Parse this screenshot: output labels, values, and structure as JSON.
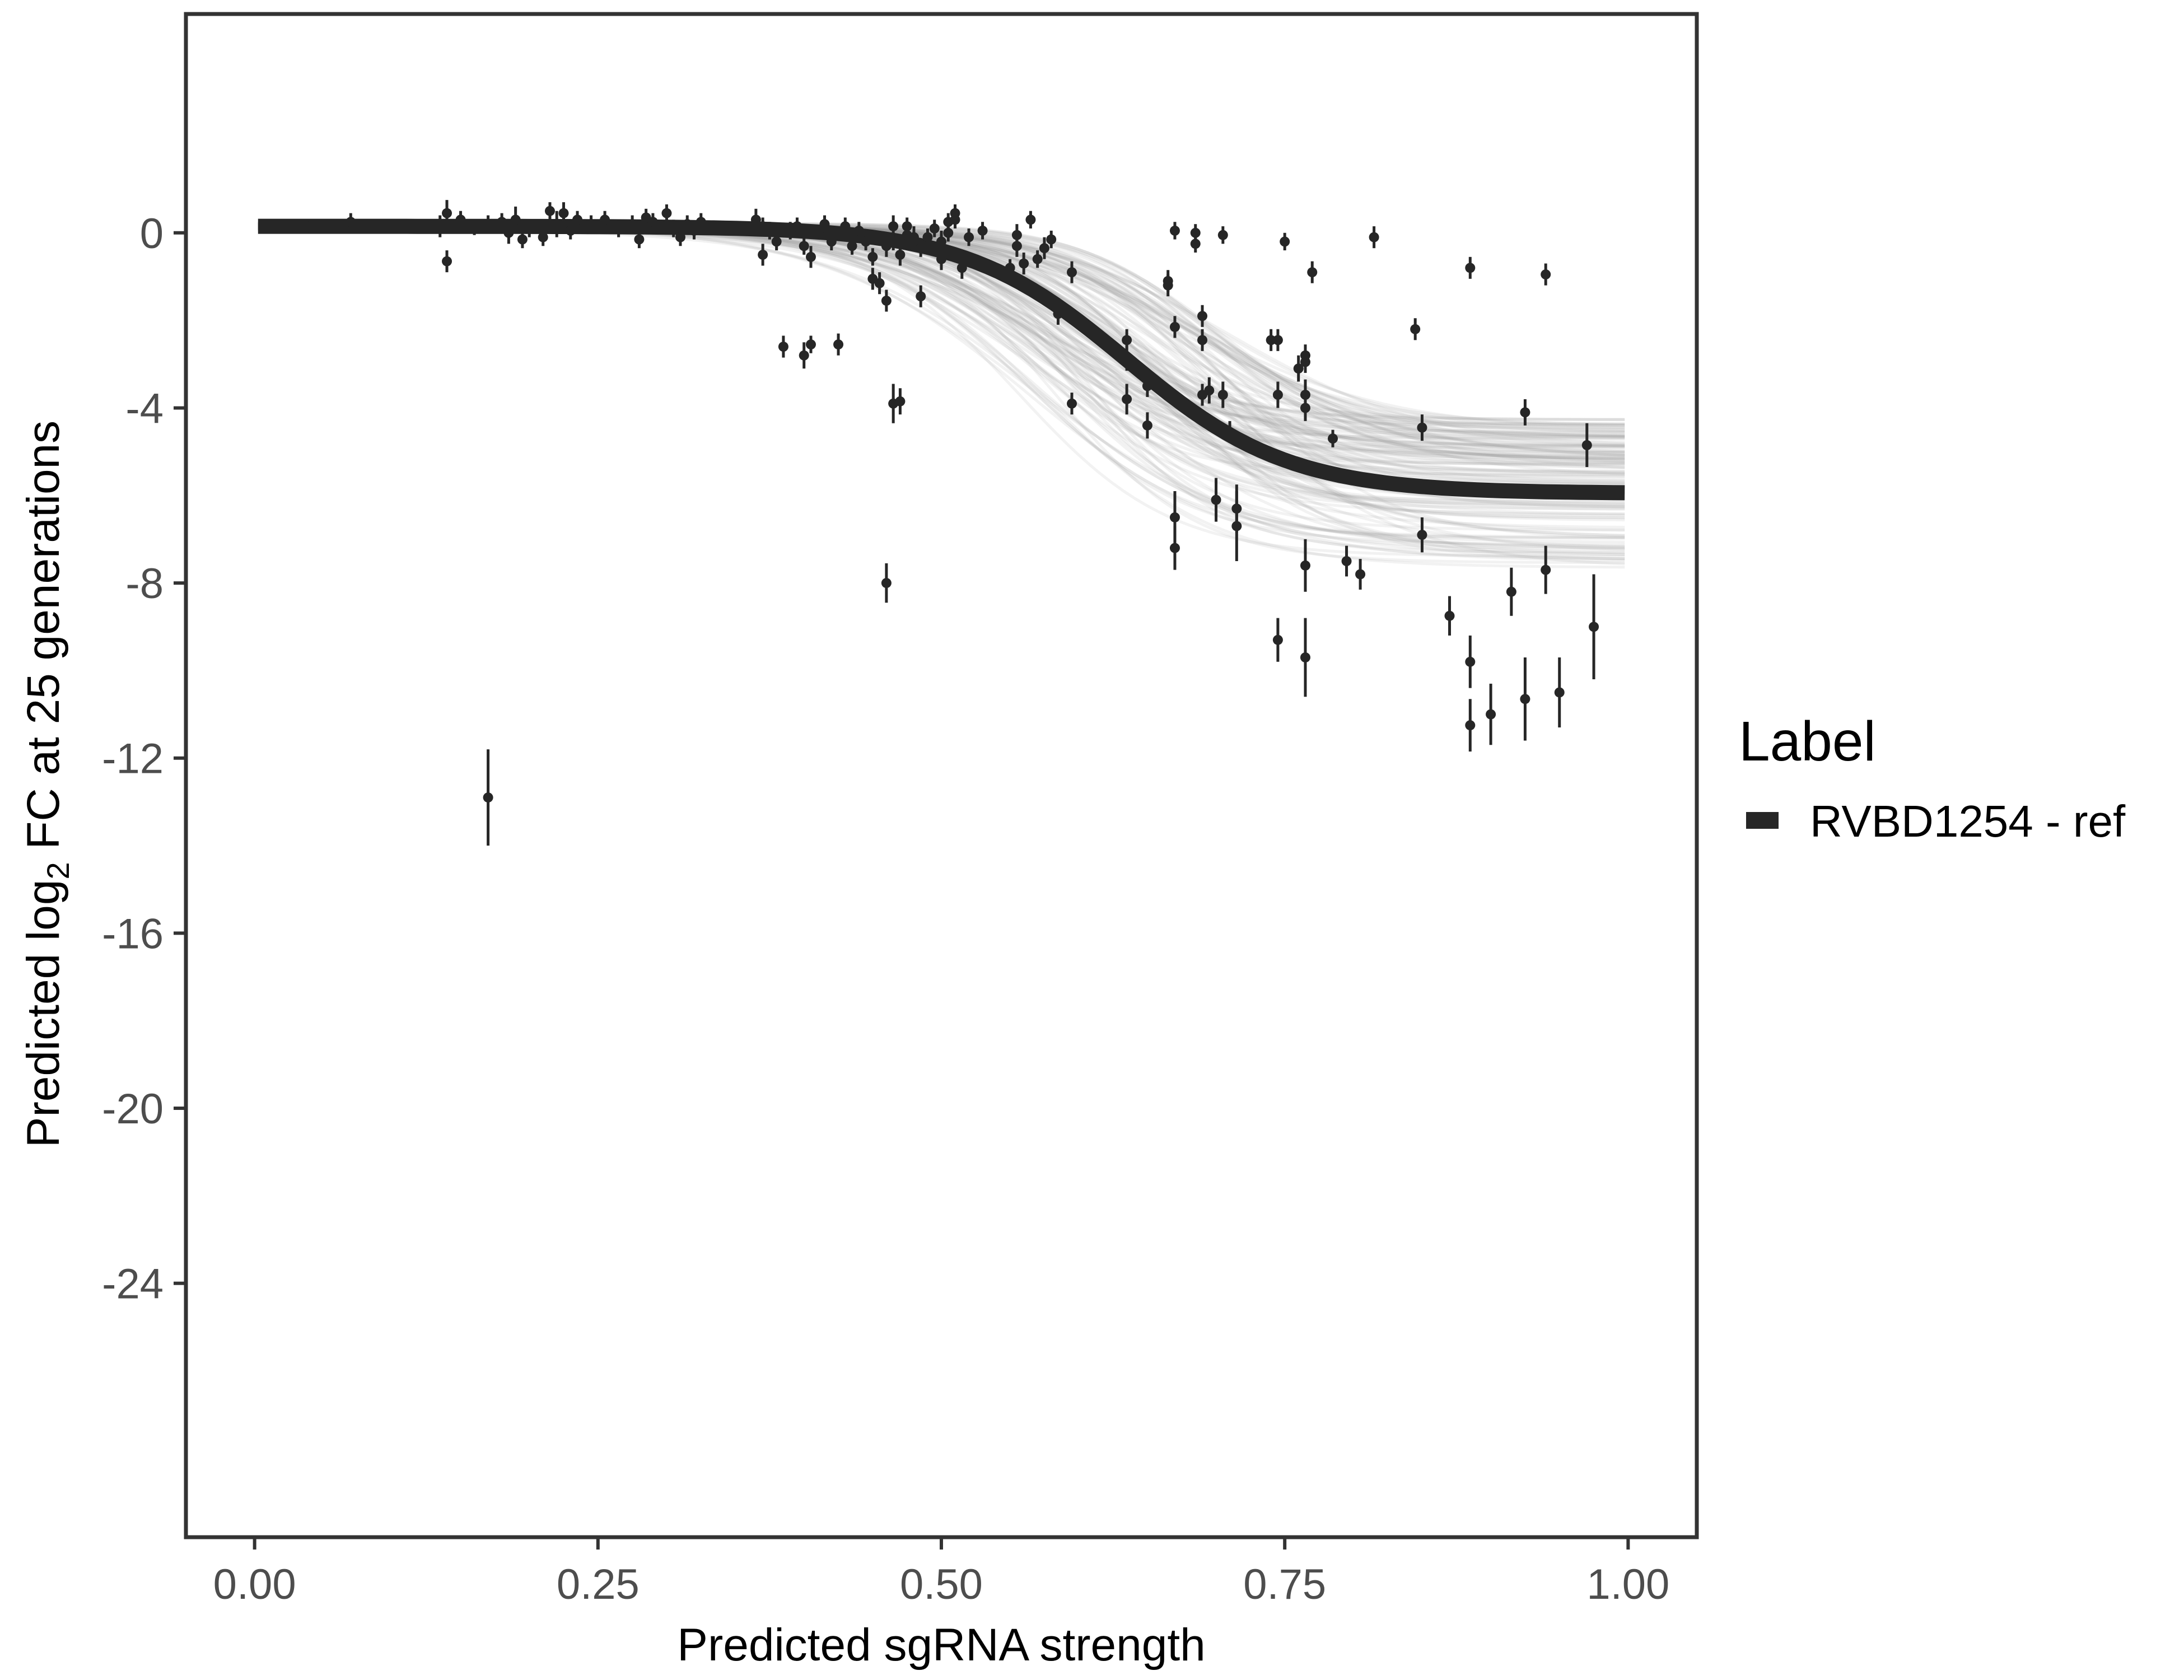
{
  "chart_data": {
    "type": "scatter",
    "xlabel": "Predicted sgRNA strength",
    "ylabel_parts": [
      "Predicted  log",
      "2",
      " FC at 25 generations"
    ],
    "xlim": [
      -0.1,
      2.1
    ],
    "ylim": [
      -29.8,
      5.0
    ],
    "x_ticks": [
      0,
      0.5,
      1,
      1.5,
      2
    ],
    "x_tick_labels": [
      "0.00",
      "0.25",
      "0.50",
      "0.75",
      "1.00"
    ],
    "y_ticks": [
      0,
      -4,
      -8,
      -12,
      -16,
      -20,
      -24
    ],
    "y_tick_labels": [
      "0",
      "-4",
      "-8",
      "-12",
      "-16",
      "-20",
      "-24"
    ],
    "grid": false,
    "legend": {
      "title": "Label",
      "position": "right",
      "entries": [
        {
          "label": "RVBD1254 - ref",
          "color": "#262626"
        }
      ]
    },
    "fit": {
      "name": "RVBD1254 - ref",
      "form": "logistic",
      "upper": 0.15,
      "lower": -5.95,
      "midpoint": 1.27,
      "slope": 8.5,
      "color": "#262626"
    },
    "colors": {
      "fit_line": "#262626",
      "band": "#999999",
      "points": "#262626",
      "axis_frame": "#333333",
      "tick_label": "#4d4d4d"
    },
    "points": [
      {
        "x": 0.08,
        "y": 0.15,
        "e": 0.15
      },
      {
        "x": 0.14,
        "y": 0.25,
        "e": 0.2
      },
      {
        "x": 0.27,
        "y": 0.15,
        "e": 0.25
      },
      {
        "x": 0.28,
        "y": 0.45,
        "e": 0.3
      },
      {
        "x": 0.28,
        "y": -0.65,
        "e": 0.25
      },
      {
        "x": 0.3,
        "y": 0.3,
        "e": 0.2
      },
      {
        "x": 0.32,
        "y": 0.1,
        "e": 0.15
      },
      {
        "x": 0.34,
        "y": 0.2,
        "e": 0.2
      },
      {
        "x": 0.34,
        "y": -12.9,
        "e": 1.1
      },
      {
        "x": 0.36,
        "y": 0.25,
        "e": 0.2
      },
      {
        "x": 0.37,
        "y": 0.0,
        "e": 0.25
      },
      {
        "x": 0.38,
        "y": 0.3,
        "e": 0.3
      },
      {
        "x": 0.39,
        "y": -0.15,
        "e": 0.2
      },
      {
        "x": 0.4,
        "y": 0.1,
        "e": 0.2
      },
      {
        "x": 0.42,
        "y": -0.1,
        "e": 0.2
      },
      {
        "x": 0.43,
        "y": 0.5,
        "e": 0.2
      },
      {
        "x": 0.44,
        "y": 0.2,
        "e": 0.3
      },
      {
        "x": 0.45,
        "y": 0.45,
        "e": 0.25
      },
      {
        "x": 0.46,
        "y": 0.05,
        "e": 0.2
      },
      {
        "x": 0.47,
        "y": 0.3,
        "e": 0.2
      },
      {
        "x": 0.49,
        "y": 0.2,
        "e": 0.2
      },
      {
        "x": 0.51,
        "y": 0.3,
        "e": 0.2
      },
      {
        "x": 0.53,
        "y": 0.1,
        "e": 0.2
      },
      {
        "x": 0.55,
        "y": 0.2,
        "e": 0.2
      },
      {
        "x": 0.56,
        "y": -0.15,
        "e": 0.2
      },
      {
        "x": 0.57,
        "y": 0.35,
        "e": 0.2
      },
      {
        "x": 0.58,
        "y": 0.25,
        "e": 0.2
      },
      {
        "x": 0.6,
        "y": 0.45,
        "e": 0.2
      },
      {
        "x": 0.61,
        "y": 0.1,
        "e": 0.2
      },
      {
        "x": 0.62,
        "y": -0.1,
        "e": 0.2
      },
      {
        "x": 0.63,
        "y": 0.2,
        "e": 0.2
      },
      {
        "x": 0.64,
        "y": 0.05,
        "e": 0.2
      },
      {
        "x": 0.65,
        "y": 0.25,
        "e": 0.2
      },
      {
        "x": 0.73,
        "y": 0.3,
        "e": 0.25
      },
      {
        "x": 0.74,
        "y": 0.15,
        "e": 0.2
      },
      {
        "x": 0.74,
        "y": -0.5,
        "e": 0.25
      },
      {
        "x": 0.75,
        "y": 0.05,
        "e": 0.2
      },
      {
        "x": 0.76,
        "y": -0.2,
        "e": 0.2
      },
      {
        "x": 0.77,
        "y": -2.6,
        "e": 0.25
      },
      {
        "x": 0.78,
        "y": 0.05,
        "e": 0.2
      },
      {
        "x": 0.79,
        "y": 0.15,
        "e": 0.2
      },
      {
        "x": 0.8,
        "y": -0.3,
        "e": 0.2
      },
      {
        "x": 0.8,
        "y": -2.8,
        "e": 0.3
      },
      {
        "x": 0.81,
        "y": -2.55,
        "e": 0.2
      },
      {
        "x": 0.81,
        "y": -0.55,
        "e": 0.25
      },
      {
        "x": 0.83,
        "y": 0.2,
        "e": 0.2
      },
      {
        "x": 0.84,
        "y": -0.2,
        "e": 0.2
      },
      {
        "x": 0.85,
        "y": -2.55,
        "e": 0.25
      },
      {
        "x": 0.86,
        "y": 0.15,
        "e": 0.2
      },
      {
        "x": 0.87,
        "y": -0.3,
        "e": 0.2
      },
      {
        "x": 0.88,
        "y": 0.05,
        "e": 0.2
      },
      {
        "x": 0.89,
        "y": -0.2,
        "e": 0.2
      },
      {
        "x": 0.9,
        "y": -0.55,
        "e": 0.2
      },
      {
        "x": 0.9,
        "y": -1.05,
        "e": 0.25
      },
      {
        "x": 0.91,
        "y": -1.15,
        "e": 0.25
      },
      {
        "x": 0.92,
        "y": -0.3,
        "e": 0.25
      },
      {
        "x": 0.92,
        "y": -1.55,
        "e": 0.25
      },
      {
        "x": 0.92,
        "y": -8.0,
        "e": 0.45
      },
      {
        "x": 0.93,
        "y": -0.2,
        "e": 0.2
      },
      {
        "x": 0.93,
        "y": 0.15,
        "e": 0.25
      },
      {
        "x": 0.93,
        "y": -3.9,
        "e": 0.45
      },
      {
        "x": 0.94,
        "y": -0.5,
        "e": 0.25
      },
      {
        "x": 0.94,
        "y": -3.85,
        "e": 0.3
      },
      {
        "x": 0.95,
        "y": -0.05,
        "e": 0.2
      },
      {
        "x": 0.95,
        "y": 0.15,
        "e": 0.2
      },
      {
        "x": 0.96,
        "y": -0.1,
        "e": 0.25
      },
      {
        "x": 0.97,
        "y": -1.45,
        "e": 0.25
      },
      {
        "x": 0.97,
        "y": -0.35,
        "e": 0.2
      },
      {
        "x": 0.98,
        "y": -0.1,
        "e": 0.2
      },
      {
        "x": 0.99,
        "y": 0.1,
        "e": 0.2
      },
      {
        "x": 1.0,
        "y": -0.2,
        "e": 0.25
      },
      {
        "x": 1.0,
        "y": -0.6,
        "e": 0.25
      },
      {
        "x": 1.01,
        "y": 0.0,
        "e": 0.2
      },
      {
        "x": 1.01,
        "y": 0.25,
        "e": 0.2
      },
      {
        "x": 1.02,
        "y": 0.45,
        "e": 0.2
      },
      {
        "x": 1.02,
        "y": 0.3,
        "e": 0.2
      },
      {
        "x": 1.03,
        "y": -0.8,
        "e": 0.25
      },
      {
        "x": 1.04,
        "y": -0.1,
        "e": 0.2
      },
      {
        "x": 1.06,
        "y": 0.05,
        "e": 0.2
      },
      {
        "x": 1.1,
        "y": -0.8,
        "e": 0.2
      },
      {
        "x": 1.11,
        "y": -0.3,
        "e": 0.25
      },
      {
        "x": 1.11,
        "y": -0.05,
        "e": 0.25
      },
      {
        "x": 1.12,
        "y": -0.7,
        "e": 0.25
      },
      {
        "x": 1.13,
        "y": 0.3,
        "e": 0.2
      },
      {
        "x": 1.14,
        "y": -0.6,
        "e": 0.2
      },
      {
        "x": 1.15,
        "y": -0.35,
        "e": 0.25
      },
      {
        "x": 1.16,
        "y": -0.15,
        "e": 0.2
      },
      {
        "x": 1.17,
        "y": -1.85,
        "e": 0.25
      },
      {
        "x": 1.19,
        "y": -0.9,
        "e": 0.25
      },
      {
        "x": 1.19,
        "y": -3.9,
        "e": 0.25
      },
      {
        "x": 1.27,
        "y": -2.45,
        "e": 0.25
      },
      {
        "x": 1.27,
        "y": -2.85,
        "e": 0.3
      },
      {
        "x": 1.27,
        "y": -3.8,
        "e": 0.35
      },
      {
        "x": 1.3,
        "y": -3.5,
        "e": 0.25
      },
      {
        "x": 1.3,
        "y": -4.4,
        "e": 0.3
      },
      {
        "x": 1.33,
        "y": -1.1,
        "e": 0.25
      },
      {
        "x": 1.33,
        "y": -1.2,
        "e": 0.25
      },
      {
        "x": 1.34,
        "y": 0.05,
        "e": 0.2
      },
      {
        "x": 1.34,
        "y": -2.15,
        "e": 0.25
      },
      {
        "x": 1.34,
        "y": -6.5,
        "e": 0.6
      },
      {
        "x": 1.34,
        "y": -7.2,
        "e": 0.5
      },
      {
        "x": 1.37,
        "y": 0.0,
        "e": 0.2
      },
      {
        "x": 1.37,
        "y": -0.25,
        "e": 0.2
      },
      {
        "x": 1.38,
        "y": -1.9,
        "e": 0.25
      },
      {
        "x": 1.38,
        "y": -2.45,
        "e": 0.25
      },
      {
        "x": 1.38,
        "y": -3.7,
        "e": 0.25
      },
      {
        "x": 1.39,
        "y": -3.6,
        "e": 0.3
      },
      {
        "x": 1.4,
        "y": -6.1,
        "e": 0.5
      },
      {
        "x": 1.41,
        "y": -0.05,
        "e": 0.2
      },
      {
        "x": 1.41,
        "y": -3.7,
        "e": 0.3
      },
      {
        "x": 1.42,
        "y": -4.55,
        "e": 0.25
      },
      {
        "x": 1.43,
        "y": -6.3,
        "e": 0.55
      },
      {
        "x": 1.43,
        "y": -6.7,
        "e": 0.8
      },
      {
        "x": 1.48,
        "y": -2.45,
        "e": 0.25
      },
      {
        "x": 1.49,
        "y": -2.45,
        "e": 0.25
      },
      {
        "x": 1.49,
        "y": -3.7,
        "e": 0.3
      },
      {
        "x": 1.49,
        "y": -9.3,
        "e": 0.5
      },
      {
        "x": 1.5,
        "y": -0.2,
        "e": 0.2
      },
      {
        "x": 1.52,
        "y": -3.1,
        "e": 0.3
      },
      {
        "x": 1.53,
        "y": -2.8,
        "e": 0.25
      },
      {
        "x": 1.53,
        "y": -2.95,
        "e": 0.25
      },
      {
        "x": 1.53,
        "y": -3.7,
        "e": 0.35
      },
      {
        "x": 1.53,
        "y": -4.0,
        "e": 0.3
      },
      {
        "x": 1.53,
        "y": -7.6,
        "e": 0.6
      },
      {
        "x": 1.53,
        "y": -9.7,
        "e": 0.9
      },
      {
        "x": 1.54,
        "y": -0.9,
        "e": 0.25
      },
      {
        "x": 1.57,
        "y": -4.7,
        "e": 0.2
      },
      {
        "x": 1.59,
        "y": -7.5,
        "e": 0.35
      },
      {
        "x": 1.61,
        "y": -7.8,
        "e": 0.35
      },
      {
        "x": 1.63,
        "y": -0.1,
        "e": 0.25
      },
      {
        "x": 1.69,
        "y": -2.2,
        "e": 0.25
      },
      {
        "x": 1.7,
        "y": -4.45,
        "e": 0.3
      },
      {
        "x": 1.7,
        "y": -6.9,
        "e": 0.4
      },
      {
        "x": 1.74,
        "y": -8.75,
        "e": 0.45
      },
      {
        "x": 1.77,
        "y": -9.8,
        "e": 0.6
      },
      {
        "x": 1.77,
        "y": -11.25,
        "e": 0.6
      },
      {
        "x": 1.77,
        "y": -0.8,
        "e": 0.25
      },
      {
        "x": 1.8,
        "y": -11.0,
        "e": 0.7
      },
      {
        "x": 1.83,
        "y": -8.2,
        "e": 0.55
      },
      {
        "x": 1.85,
        "y": -10.65,
        "e": 0.95
      },
      {
        "x": 1.85,
        "y": -4.1,
        "e": 0.3
      },
      {
        "x": 1.88,
        "y": -7.7,
        "e": 0.55
      },
      {
        "x": 1.88,
        "y": -0.95,
        "e": 0.25
      },
      {
        "x": 1.9,
        "y": -10.5,
        "e": 0.8
      },
      {
        "x": 1.94,
        "y": -4.85,
        "e": 0.5
      },
      {
        "x": 1.95,
        "y": -9.0,
        "e": 1.2
      }
    ]
  }
}
